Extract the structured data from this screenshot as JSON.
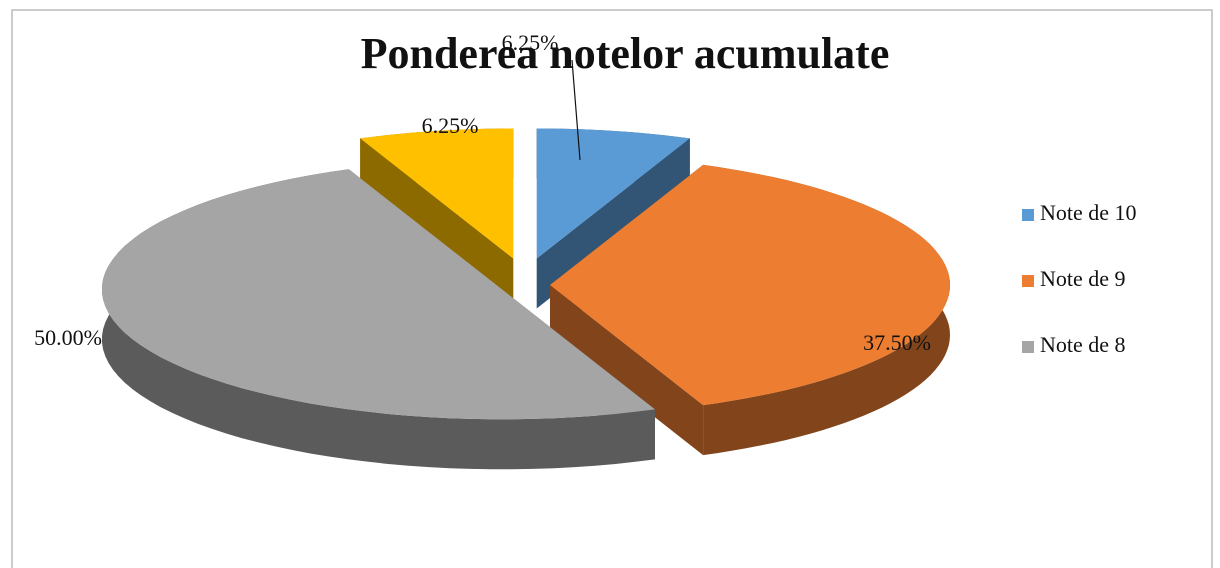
{
  "chart_data": {
    "type": "pie",
    "title": "Ponderea notelor acumulate",
    "categories": [
      "Note de 10",
      "Note de 9",
      "Note de 8",
      null
    ],
    "values": [
      6.25,
      37.5,
      50,
      6.25
    ],
    "value_labels": [
      "6.25%",
      "37.50%",
      "50.00%",
      "6.25%"
    ],
    "colors": [
      "#5b9bd5",
      "#ed7d31",
      "#a5a5a5",
      "#ffc000"
    ],
    "legend": "right"
  }
}
